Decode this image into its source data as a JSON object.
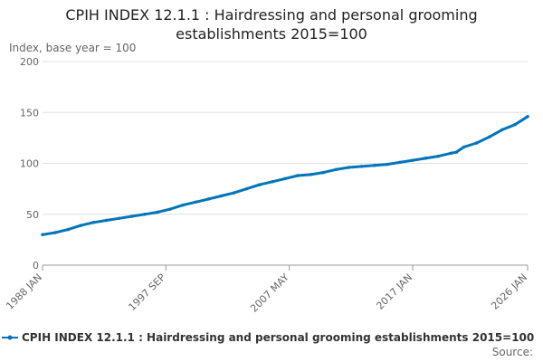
{
  "chart_data": {
    "type": "line",
    "title_line1": "CPIH INDEX 12.1.1 : Hairdressing and personal grooming",
    "title_line2": "establishments 2015=100",
    "ylabel": "Index, base year = 100",
    "xlabel": "",
    "ylim": [
      0,
      200
    ],
    "yticks": [
      0,
      50,
      100,
      150,
      200
    ],
    "xlim": [
      "1988 JAN",
      "2026 JAN"
    ],
    "xtick_labels": [
      "1988 JAN",
      "1997 SEP",
      "2007 MAY",
      "2017 JAN",
      "2026 JAN"
    ],
    "grid": "horizontal",
    "legend_position": "bottom",
    "source": "Source:",
    "series": [
      {
        "name": "CPIH INDEX 12.1.1 : Hairdressing and personal grooming establishments 2015=100",
        "color": "#0075b9",
        "x": [
          "1988 JAN",
          "1989 JAN",
          "1990 JAN",
          "1991 JAN",
          "1992 JAN",
          "1993 JAN",
          "1994 JAN",
          "1995 JAN",
          "1996 JAN",
          "1997 JAN",
          "1998 JAN",
          "1999 JAN",
          "2000 JAN",
          "2001 JAN",
          "2002 JAN",
          "2003 JAN",
          "2004 JAN",
          "2005 JAN",
          "2006 JAN",
          "2007 JAN",
          "2008 JAN",
          "2009 JAN",
          "2010 JAN",
          "2011 JAN",
          "2012 JAN",
          "2013 JAN",
          "2014 JAN",
          "2015 JAN",
          "2016 JAN",
          "2017 JAN",
          "2018 JAN",
          "2019 JAN",
          "2020 JAN",
          "2020 JUN",
          "2021 JAN",
          "2022 JAN",
          "2023 JAN",
          "2024 JAN",
          "2025 JAN",
          "2026 JAN"
        ],
        "values": [
          30,
          32,
          35,
          39,
          42,
          44,
          46,
          48,
          50,
          52,
          55,
          59,
          62,
          65,
          68,
          71,
          75,
          79,
          82,
          85,
          88,
          89,
          91,
          94,
          96,
          97,
          98,
          99,
          101,
          103,
          105,
          107,
          110,
          111,
          116,
          120,
          126,
          133,
          138,
          146
        ]
      }
    ]
  }
}
